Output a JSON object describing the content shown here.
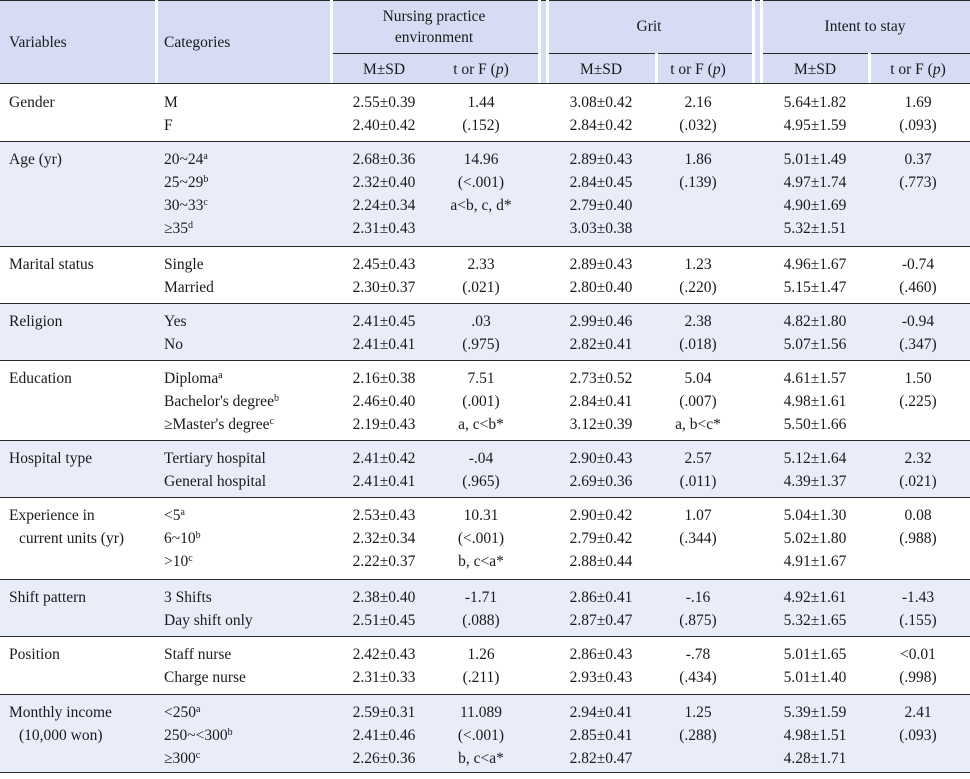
{
  "header": {
    "variables": "Variables",
    "categories": "Categories",
    "groups": [
      "Nursing practice environment",
      "Grit",
      "Intent to stay"
    ],
    "group_lines": [
      [
        "Nursing practice",
        "environment"
      ],
      [
        "Grit"
      ],
      [
        "Intent to stay"
      ]
    ],
    "msd": "M±SD",
    "stat": "t or F (p)"
  },
  "rows": [
    {
      "variable": [
        "Gender"
      ],
      "categories": [
        {
          "t": "M",
          "s": ""
        },
        {
          "t": "F",
          "s": ""
        }
      ],
      "npe_m": [
        "2.55±0.39",
        "2.40±0.42"
      ],
      "npe_s": [
        "1.44",
        "(.152)"
      ],
      "grit_m": [
        "3.08±0.42",
        "2.84±0.42"
      ],
      "grit_s": [
        "2.16",
        "(.032)"
      ],
      "its_m": [
        "5.64±1.82",
        "4.95±1.59"
      ],
      "its_s": [
        "1.69",
        "(.093)"
      ]
    },
    {
      "variable": [
        "Age (yr)"
      ],
      "categories": [
        {
          "t": "20~24",
          "s": "a"
        },
        {
          "t": "25~29",
          "s": "b"
        },
        {
          "t": "30~33",
          "s": "c"
        },
        {
          "t": "≥35",
          "s": "d"
        }
      ],
      "npe_m": [
        "2.68±0.36",
        "2.32±0.40",
        "2.24±0.34",
        "2.31±0.43"
      ],
      "npe_s": [
        "14.96",
        "(<.001)",
        "a<b, c, d*"
      ],
      "grit_m": [
        "2.89±0.43",
        "2.84±0.45",
        "2.79±0.40",
        "3.03±0.38"
      ],
      "grit_s": [
        "1.86",
        "(.139)"
      ],
      "its_m": [
        "5.01±1.49",
        "4.97±1.74",
        "4.90±1.69",
        "5.32±1.51"
      ],
      "its_s": [
        "0.37",
        "(.773)"
      ]
    },
    {
      "variable": [
        "Marital status"
      ],
      "categories": [
        {
          "t": "Single",
          "s": ""
        },
        {
          "t": "Married",
          "s": ""
        }
      ],
      "npe_m": [
        "2.45±0.43",
        "2.30±0.37"
      ],
      "npe_s": [
        "2.33",
        "(.021)"
      ],
      "grit_m": [
        "2.89±0.43",
        "2.80±0.40"
      ],
      "grit_s": [
        "1.23",
        "(.220)"
      ],
      "its_m": [
        "4.96±1.67",
        "5.15±1.47"
      ],
      "its_s": [
        "-0.74",
        "(.460)"
      ]
    },
    {
      "variable": [
        "Religion"
      ],
      "categories": [
        {
          "t": "Yes",
          "s": ""
        },
        {
          "t": "No",
          "s": ""
        }
      ],
      "npe_m": [
        "2.41±0.45",
        "2.41±0.41"
      ],
      "npe_s": [
        ".03",
        "(.975)"
      ],
      "grit_m": [
        "2.99±0.46",
        "2.82±0.41"
      ],
      "grit_s": [
        "2.38",
        "(.018)"
      ],
      "its_m": [
        "4.82±1.80",
        "5.07±1.56"
      ],
      "its_s": [
        "-0.94",
        "(.347)"
      ]
    },
    {
      "variable": [
        "Education"
      ],
      "categories": [
        {
          "t": "Diploma",
          "s": "a"
        },
        {
          "t": "Bachelor's degree",
          "s": "b"
        },
        {
          "t": "≥Master's degree",
          "s": "c"
        }
      ],
      "npe_m": [
        "2.16±0.38",
        "2.46±0.40",
        "2.19±0.43"
      ],
      "npe_s": [
        "7.51",
        "(.001)",
        "a, c<b*"
      ],
      "grit_m": [
        "2.73±0.52",
        "2.84±0.41",
        "3.12±0.39"
      ],
      "grit_s": [
        "5.04",
        "(.007)",
        "a, b<c*"
      ],
      "its_m": [
        "4.61±1.57",
        "4.98±1.61",
        "5.50±1.66"
      ],
      "its_s": [
        "1.50",
        "(.225)"
      ]
    },
    {
      "variable": [
        "Hospital type"
      ],
      "categories": [
        {
          "t": "Tertiary hospital",
          "s": ""
        },
        {
          "t": "General hospital",
          "s": ""
        }
      ],
      "npe_m": [
        "2.41±0.42",
        "2.41±0.41"
      ],
      "npe_s": [
        "-.04",
        "(.965)"
      ],
      "grit_m": [
        "2.90±0.43",
        "2.69±0.36"
      ],
      "grit_s": [
        "2.57",
        "(.011)"
      ],
      "its_m": [
        "5.12±1.64",
        "4.39±1.37"
      ],
      "its_s": [
        "2.32",
        "(.021)"
      ]
    },
    {
      "variable": [
        "Experience in",
        "current units (yr)"
      ],
      "categories": [
        {
          "t": "<5",
          "s": "a"
        },
        {
          "t": "6~10",
          "s": "b"
        },
        {
          "t": ">10",
          "s": "c"
        }
      ],
      "npe_m": [
        "2.53±0.43",
        "2.32±0.34",
        "2.22±0.37"
      ],
      "npe_s": [
        "10.31",
        "(<.001)",
        "b, c<a*"
      ],
      "grit_m": [
        "2.90±0.42",
        "2.79±0.42",
        "2.88±0.44"
      ],
      "grit_s": [
        "1.07",
        "(.344)"
      ],
      "its_m": [
        "5.04±1.30",
        "5.02±1.80",
        "4.91±1.67"
      ],
      "its_s": [
        "0.08",
        "(.988)"
      ]
    },
    {
      "variable": [
        "Shift pattern"
      ],
      "categories": [
        {
          "t": "3 Shifts",
          "s": ""
        },
        {
          "t": "Day shift only",
          "s": ""
        }
      ],
      "npe_m": [
        "2.38±0.40",
        "2.51±0.45"
      ],
      "npe_s": [
        "-1.71",
        "(.088)"
      ],
      "grit_m": [
        "2.86±0.41",
        "2.87±0.47"
      ],
      "grit_s": [
        "-.16",
        "(.875)"
      ],
      "its_m": [
        "4.92±1.61",
        "5.32±1.65"
      ],
      "its_s": [
        "-1.43",
        "(.155)"
      ]
    },
    {
      "variable": [
        "Position"
      ],
      "categories": [
        {
          "t": "Staff nurse",
          "s": ""
        },
        {
          "t": "Charge nurse",
          "s": ""
        }
      ],
      "npe_m": [
        "2.42±0.43",
        "2.31±0.33"
      ],
      "npe_s": [
        "1.26",
        "(.211)"
      ],
      "grit_m": [
        "2.86±0.43",
        "2.93±0.43"
      ],
      "grit_s": [
        "-.78",
        "(.434)"
      ],
      "its_m": [
        "5.01±1.65",
        "5.01±1.40"
      ],
      "its_s": [
        "<0.01",
        "(.998)"
      ]
    },
    {
      "variable": [
        "Monthly income",
        "(10,000 won)"
      ],
      "categories": [
        {
          "t": "<250",
          "s": "a"
        },
        {
          "t": "250~<300",
          "s": "b"
        },
        {
          "t": "≥300",
          "s": "c"
        }
      ],
      "npe_m": [
        "2.59±0.31",
        "2.41±0.46",
        "2.26±0.36"
      ],
      "npe_s": [
        "11.089",
        "(<.001)",
        "b, c<a*"
      ],
      "grit_m": [
        "2.94±0.41",
        "2.85±0.41",
        "2.82±0.47"
      ],
      "grit_s": [
        "1.25",
        "(.288)"
      ],
      "its_m": [
        "5.39±1.59",
        "4.98±1.51",
        "4.28±1.71"
      ],
      "its_s": [
        "2.41",
        "(.093)"
      ]
    }
  ]
}
